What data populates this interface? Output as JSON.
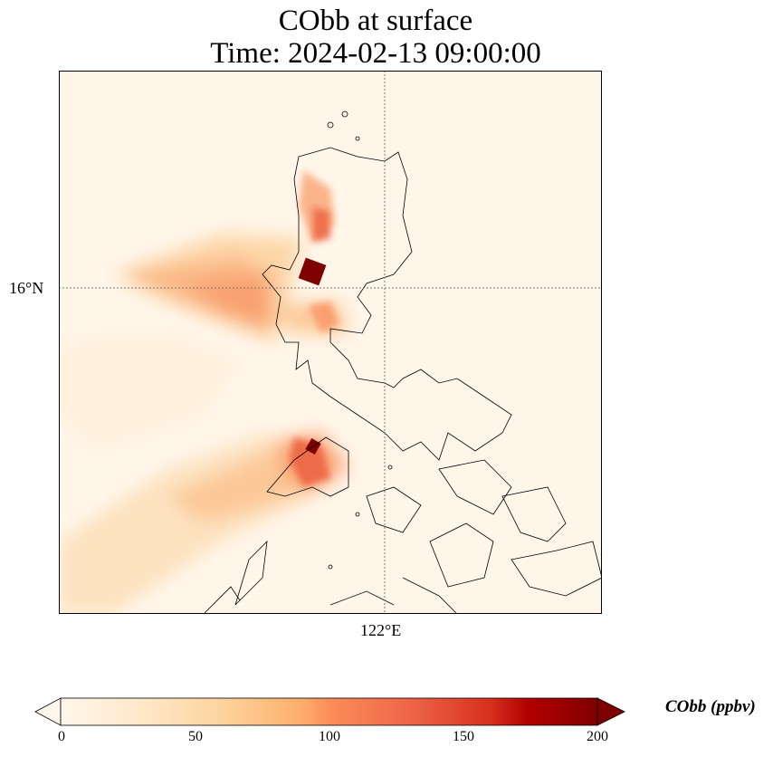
{
  "title": {
    "line1": "CObb at surface",
    "line2": "Time: 2024-02-13 09:00:00"
  },
  "axes": {
    "lat_label": "16°N",
    "lon_label": "122°E"
  },
  "colorbar": {
    "label": "CObb (ppbv)",
    "ticks": [
      "0",
      "50",
      "100",
      "150",
      "200"
    ],
    "range": [
      0,
      200
    ],
    "extend": "both",
    "colormap": [
      "#fff7ec",
      "#fdd49e",
      "#fc8d59",
      "#d7301f",
      "#7f0000"
    ]
  }
}
